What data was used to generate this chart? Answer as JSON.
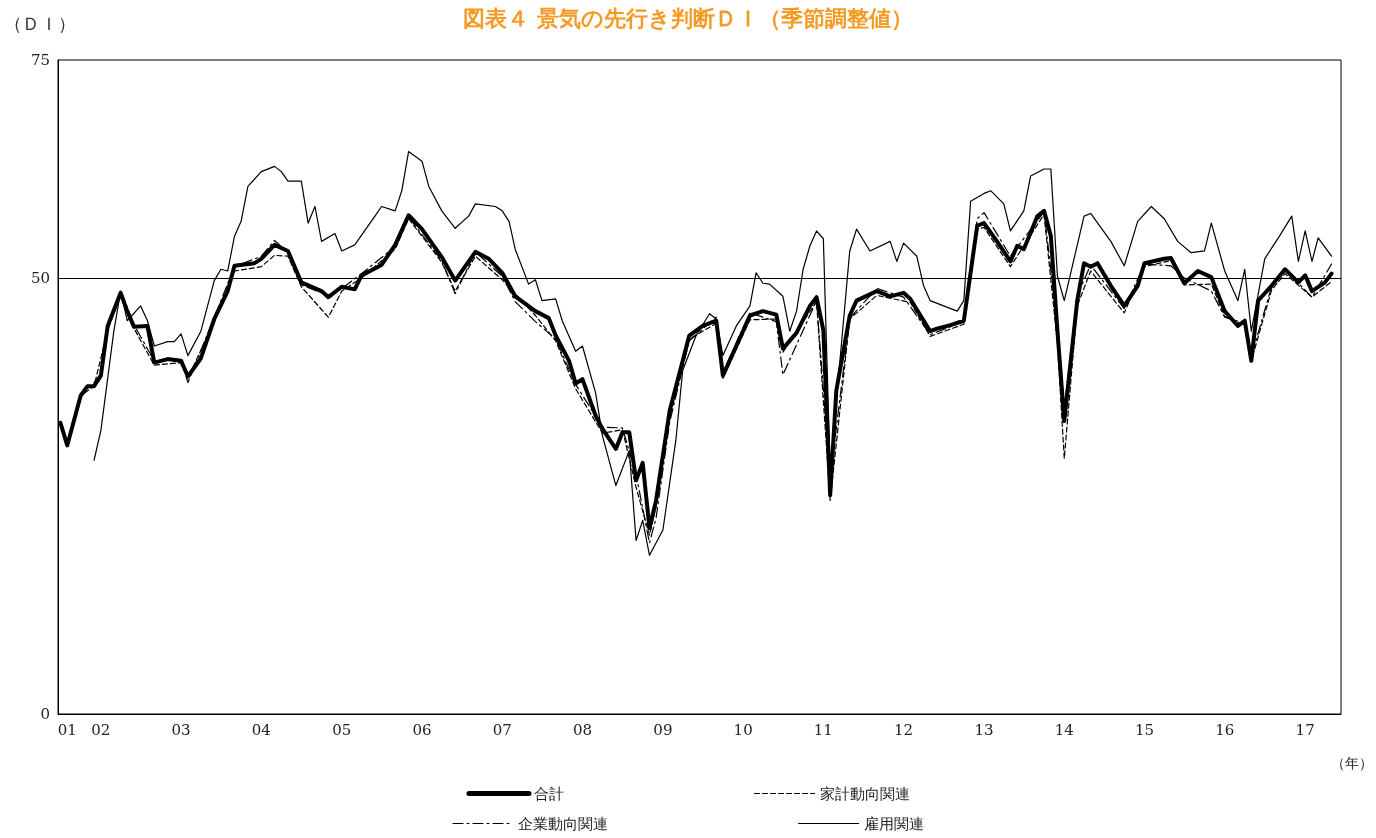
{
  "chart_data": {
    "type": "line",
    "title": "図表４ 景気の先行き判断ＤＩ（季節調整値）",
    "ylabel": "（ＤＩ）",
    "xlabel": "（年）",
    "xlim": [
      "2001-06-20",
      "2017-06-13"
    ],
    "xticks": [
      {
        "value": "2001-08",
        "label": "01"
      },
      {
        "value": "2002-01",
        "label": "02"
      },
      {
        "value": "2003-01",
        "label": "03"
      },
      {
        "value": "2004-01",
        "label": "04"
      },
      {
        "value": "2005-01",
        "label": "05"
      },
      {
        "value": "2006-01",
        "label": "06"
      },
      {
        "value": "2007-01",
        "label": "07"
      },
      {
        "value": "2008-01",
        "label": "08"
      },
      {
        "value": "2009-01",
        "label": "09"
      },
      {
        "value": "2010-01",
        "label": "10"
      },
      {
        "value": "2011-01",
        "label": "11"
      },
      {
        "value": "2012-01",
        "label": "12"
      },
      {
        "value": "2013-01",
        "label": "13"
      },
      {
        "value": "2014-01",
        "label": "14"
      },
      {
        "value": "2015-01",
        "label": "15"
      },
      {
        "value": "2016-01",
        "label": "16"
      },
      {
        "value": "2017-01",
        "label": "17"
      }
    ],
    "ylim": [
      0,
      75
    ],
    "yticks": [
      0,
      50,
      75
    ],
    "grid": false,
    "legend": "bottom",
    "marker": "none",
    "ref_lines": [
      {
        "axis": "y",
        "value": 50,
        "color": "#000000"
      }
    ],
    "series": [
      {
        "name": "合計",
        "color": "#000000",
        "line_style": "solid",
        "x": [
          "2001-07",
          "2001-08",
          "2001-10",
          "2001-11",
          "2001-12",
          "2002-01",
          "2002-02",
          "2002-04",
          "2002-05",
          "2002-06",
          "2002-08",
          "2002-09",
          "2002-11",
          "2003-01",
          "2003-02",
          "2003-04",
          "2003-06",
          "2003-08",
          "2003-09",
          "2003-12",
          "2004-01",
          "2004-03",
          "2004-05",
          "2004-07",
          "2004-10",
          "2004-11",
          "2005-01",
          "2005-03",
          "2005-04",
          "2005-07",
          "2005-09",
          "2005-11",
          "2006-01",
          "2006-04",
          "2006-06",
          "2006-09",
          "2006-11",
          "2007-01",
          "2007-03",
          "2007-06",
          "2007-08",
          "2007-09",
          "2007-11",
          "2007-12",
          "2008-01",
          "2008-03",
          "2008-04",
          "2008-06",
          "2008-07",
          "2008-08",
          "2008-09",
          "2008-10",
          "2008-11",
          "2008-12",
          "2009-02",
          "2009-05",
          "2009-07",
          "2009-09",
          "2009-10",
          "2009-12",
          "2010-02",
          "2010-04",
          "2010-06",
          "2010-07",
          "2010-09",
          "2010-11",
          "2010-12",
          "2011-01",
          "2011-02",
          "2011-03",
          "2011-05",
          "2011-06",
          "2011-09",
          "2011-11",
          "2012-01",
          "2012-02",
          "2012-05",
          "2012-06",
          "2012-08",
          "2012-10",
          "2012-12",
          "2013-01",
          "2013-03",
          "2013-05",
          "2013-06",
          "2013-07",
          "2013-09",
          "2013-10",
          "2013-11",
          "2013-12",
          "2014-01",
          "2014-03",
          "2014-04",
          "2014-05",
          "2014-06",
          "2014-08",
          "2014-10",
          "2014-12",
          "2015-01",
          "2015-04",
          "2015-05",
          "2015-07",
          "2015-09",
          "2015-11",
          "2016-01",
          "2016-03",
          "2016-04",
          "2016-05",
          "2016-06",
          "2016-08",
          "2016-10",
          "2016-12",
          "2017-01",
          "2017-02",
          "2017-04",
          "2017-05"
        ],
        "values": [
          33.4,
          30.8,
          36.5,
          37.6,
          37.6,
          38.8,
          44.5,
          48.3,
          46.2,
          44.4,
          44.5,
          40.3,
          40.7,
          40.5,
          38.7,
          40.8,
          45.3,
          48.5,
          51.4,
          51.7,
          52.2,
          53.8,
          53.1,
          49.5,
          48.5,
          47.8,
          49.0,
          48.7,
          50.3,
          51.5,
          53.8,
          57.2,
          55.6,
          52.4,
          49.7,
          53.0,
          52.2,
          50.6,
          47.9,
          46.2,
          45.4,
          43.4,
          40.5,
          37.9,
          38.4,
          34.2,
          32.7,
          30.4,
          32.3,
          32.3,
          26.8,
          28.8,
          21.3,
          24.5,
          34.8,
          43.4,
          44.5,
          45.1,
          38.8,
          42.2,
          45.7,
          46.2,
          45.8,
          41.9,
          43.7,
          46.8,
          47.8,
          44.0,
          25.1,
          37.1,
          45.7,
          47.4,
          48.5,
          47.9,
          48.3,
          47.6,
          43.9,
          44.2,
          44.6,
          45.1,
          56.0,
          56.3,
          54.2,
          51.9,
          53.7,
          53.3,
          57.1,
          57.7,
          54.8,
          43.9,
          33.6,
          47.4,
          51.7,
          51.3,
          51.7,
          49.1,
          46.8,
          49.1,
          51.7,
          52.2,
          52.3,
          49.4,
          50.8,
          50.1,
          46.2,
          44.5,
          45.1,
          40.5,
          47.4,
          49.1,
          51.0,
          49.5,
          50.3,
          48.5,
          49.5,
          50.5
        ]
      },
      {
        "name": "家計動向関連",
        "color": "#000000",
        "line_style": "dashed",
        "x": [
          "2001-07",
          "2001-08",
          "2001-10",
          "2001-12",
          "2002-02",
          "2002-04",
          "2002-06",
          "2002-09",
          "2003-01",
          "2003-02",
          "2003-06",
          "2003-09",
          "2004-01",
          "2004-03",
          "2004-05",
          "2004-07",
          "2004-11",
          "2005-01",
          "2005-04",
          "2005-09",
          "2005-11",
          "2006-04",
          "2006-06",
          "2006-09",
          "2007-01",
          "2007-06",
          "2007-09",
          "2007-12",
          "2008-04",
          "2008-07",
          "2008-09",
          "2008-11",
          "2008-12",
          "2009-02",
          "2009-05",
          "2009-09",
          "2009-10",
          "2010-02",
          "2010-06",
          "2010-07",
          "2010-12",
          "2011-02",
          "2011-05",
          "2011-09",
          "2012-02",
          "2012-05",
          "2012-10",
          "2012-12",
          "2013-01",
          "2013-05",
          "2013-10",
          "2013-12",
          "2014-01",
          "2014-03",
          "2014-05",
          "2014-10",
          "2015-01",
          "2015-05",
          "2015-07",
          "2015-11",
          "2016-01",
          "2016-04",
          "2016-05",
          "2016-08",
          "2016-10",
          "2017-02",
          "2017-05"
        ],
        "values": [
          33.4,
          30.8,
          36.5,
          37.6,
          44.0,
          48.0,
          44.2,
          40.0,
          40.3,
          38.5,
          45.0,
          50.8,
          51.3,
          52.6,
          52.5,
          49.0,
          45.5,
          48.5,
          50.0,
          53.3,
          56.8,
          51.8,
          48.5,
          52.5,
          49.8,
          45.7,
          42.8,
          37.3,
          32.2,
          32.6,
          26.0,
          20.5,
          23.8,
          34.0,
          43.0,
          44.8,
          38.5,
          45.2,
          45.3,
          41.5,
          47.3,
          24.5,
          45.3,
          48.0,
          47.2,
          43.3,
          44.7,
          55.6,
          55.8,
          51.3,
          57.3,
          42.5,
          29.3,
          46.8,
          50.8,
          46.0,
          51.3,
          52.0,
          49.2,
          49.3,
          45.6,
          44.6,
          40.5,
          48.6,
          50.5,
          47.8,
          49.6
        ]
      },
      {
        "name": "企業動向関連",
        "color": "#000000",
        "line_style": "dashdot",
        "x": [
          "2001-12",
          "2002-01",
          "2002-02",
          "2002-04",
          "2002-06",
          "2002-09",
          "2003-01",
          "2003-02",
          "2003-06",
          "2003-09",
          "2004-01",
          "2004-03",
          "2004-05",
          "2004-07",
          "2004-11",
          "2005-01",
          "2005-04",
          "2005-09",
          "2005-11",
          "2006-04",
          "2006-06",
          "2006-09",
          "2007-01",
          "2007-03",
          "2007-06",
          "2007-09",
          "2007-12",
          "2008-04",
          "2008-07",
          "2008-09",
          "2008-11",
          "2008-12",
          "2009-02",
          "2009-05",
          "2009-09",
          "2009-10",
          "2010-02",
          "2010-06",
          "2010-07",
          "2010-12",
          "2011-02",
          "2011-05",
          "2011-09",
          "2012-01",
          "2012-05",
          "2012-10",
          "2012-12",
          "2013-01",
          "2013-05",
          "2013-10",
          "2013-12",
          "2014-01",
          "2014-03",
          "2014-05",
          "2014-10",
          "2015-01",
          "2015-05",
          "2015-07",
          "2015-11",
          "2016-01",
          "2016-04",
          "2016-05",
          "2016-08",
          "2016-10",
          "2017-02",
          "2017-05"
        ],
        "values": [
          38.0,
          39.0,
          44.3,
          48.6,
          44.6,
          40.5,
          40.6,
          38.0,
          45.5,
          51.3,
          52.5,
          54.3,
          52.9,
          49.2,
          48.0,
          48.8,
          50.5,
          53.6,
          57.0,
          52.0,
          48.2,
          53.0,
          50.2,
          47.3,
          45.0,
          43.0,
          37.8,
          32.9,
          32.8,
          27.5,
          19.6,
          22.5,
          33.5,
          42.8,
          45.5,
          39.2,
          46.0,
          45.0,
          38.9,
          47.4,
          27.0,
          45.4,
          48.8,
          47.8,
          43.5,
          45.0,
          56.8,
          57.5,
          52.5,
          57.6,
          44.5,
          35.0,
          48.0,
          51.5,
          46.5,
          51.6,
          51.4,
          50.0,
          48.5,
          45.5,
          44.8,
          41.0,
          49.0,
          51.0,
          47.8,
          51.6
        ]
      },
      {
        "name": "雇用関連",
        "color": "#000000",
        "line_style": "solid",
        "x": [
          "2001-12",
          "2002-01",
          "2002-03",
          "2002-04",
          "2002-05",
          "2002-07",
          "2002-08",
          "2002-09",
          "2002-11",
          "2002-12",
          "2003-01",
          "2003-02",
          "2003-04",
          "2003-06",
          "2003-07",
          "2003-08",
          "2003-09",
          "2003-10",
          "2003-11",
          "2004-01",
          "2004-03",
          "2004-04",
          "2004-05",
          "2004-07",
          "2004-08",
          "2004-09",
          "2004-10",
          "2004-12",
          "2005-01",
          "2005-03",
          "2005-06",
          "2005-07",
          "2005-09",
          "2005-10",
          "2005-11",
          "2006-01",
          "2006-02",
          "2006-04",
          "2006-06",
          "2006-08",
          "2006-09",
          "2006-12",
          "2007-01",
          "2007-02",
          "2007-03",
          "2007-05",
          "2007-06",
          "2007-07",
          "2007-09",
          "2007-10",
          "2007-12",
          "2008-01",
          "2008-03",
          "2008-04",
          "2008-06",
          "2008-08",
          "2008-09",
          "2008-10",
          "2008-11",
          "2009-01",
          "2009-03",
          "2009-04",
          "2009-06",
          "2009-08",
          "2009-09",
          "2009-10",
          "2009-12",
          "2010-02",
          "2010-03",
          "2010-04",
          "2010-05",
          "2010-07",
          "2010-08",
          "2010-09",
          "2010-10",
          "2010-11",
          "2010-12",
          "2011-01",
          "2011-02",
          "2011-03",
          "2011-05",
          "2011-06",
          "2011-08",
          "2011-11",
          "2011-12",
          "2012-01",
          "2012-03",
          "2012-04",
          "2012-05",
          "2012-07",
          "2012-09",
          "2012-10",
          "2012-11",
          "2013-01",
          "2013-02",
          "2013-04",
          "2013-05",
          "2013-07",
          "2013-08",
          "2013-10",
          "2013-11",
          "2013-12",
          "2014-01",
          "2014-04",
          "2014-05",
          "2014-08",
          "2014-10",
          "2014-12",
          "2015-02",
          "2015-04",
          "2015-06",
          "2015-08",
          "2015-10",
          "2015-11",
          "2016-01",
          "2016-03",
          "2016-04",
          "2016-05",
          "2016-07",
          "2016-09",
          "2016-11",
          "2016-12",
          "2017-01",
          "2017-02",
          "2017-03",
          "2017-05"
        ],
        "values": [
          29.1,
          32.5,
          43.9,
          48.5,
          45.1,
          46.8,
          45.1,
          42.2,
          42.7,
          42.7,
          43.6,
          41.1,
          43.9,
          49.7,
          51.0,
          50.8,
          54.8,
          56.5,
          60.5,
          62.2,
          62.8,
          62.2,
          61.1,
          61.1,
          56.3,
          58.2,
          54.2,
          55.1,
          53.1,
          53.8,
          57.1,
          58.2,
          57.7,
          60.0,
          64.5,
          63.4,
          60.5,
          57.7,
          55.7,
          57.1,
          58.5,
          58.2,
          57.7,
          56.5,
          53.3,
          49.3,
          49.8,
          47.4,
          47.6,
          45.1,
          41.6,
          42.2,
          36.8,
          31.9,
          26.2,
          30.2,
          19.9,
          22.2,
          18.2,
          21.1,
          31.4,
          39.4,
          43.4,
          45.9,
          45.3,
          41.1,
          44.5,
          46.8,
          50.6,
          49.4,
          49.3,
          47.9,
          43.9,
          46.2,
          51.0,
          53.7,
          55.4,
          54.5,
          27.9,
          35.9,
          53.1,
          55.6,
          53.1,
          54.2,
          51.9,
          54.0,
          52.5,
          49.1,
          47.4,
          46.8,
          46.2,
          47.4,
          58.8,
          59.7,
          60.0,
          58.5,
          55.4,
          57.7,
          61.7,
          62.5,
          62.5,
          50.2,
          47.4,
          57.1,
          57.4,
          54.2,
          51.4,
          56.5,
          58.2,
          56.8,
          54.2,
          52.9,
          53.1,
          56.3,
          50.8,
          47.4,
          51.0,
          43.9,
          52.2,
          54.6,
          57.1,
          51.9,
          55.4,
          51.9,
          54.6,
          52.5
        ]
      }
    ]
  }
}
